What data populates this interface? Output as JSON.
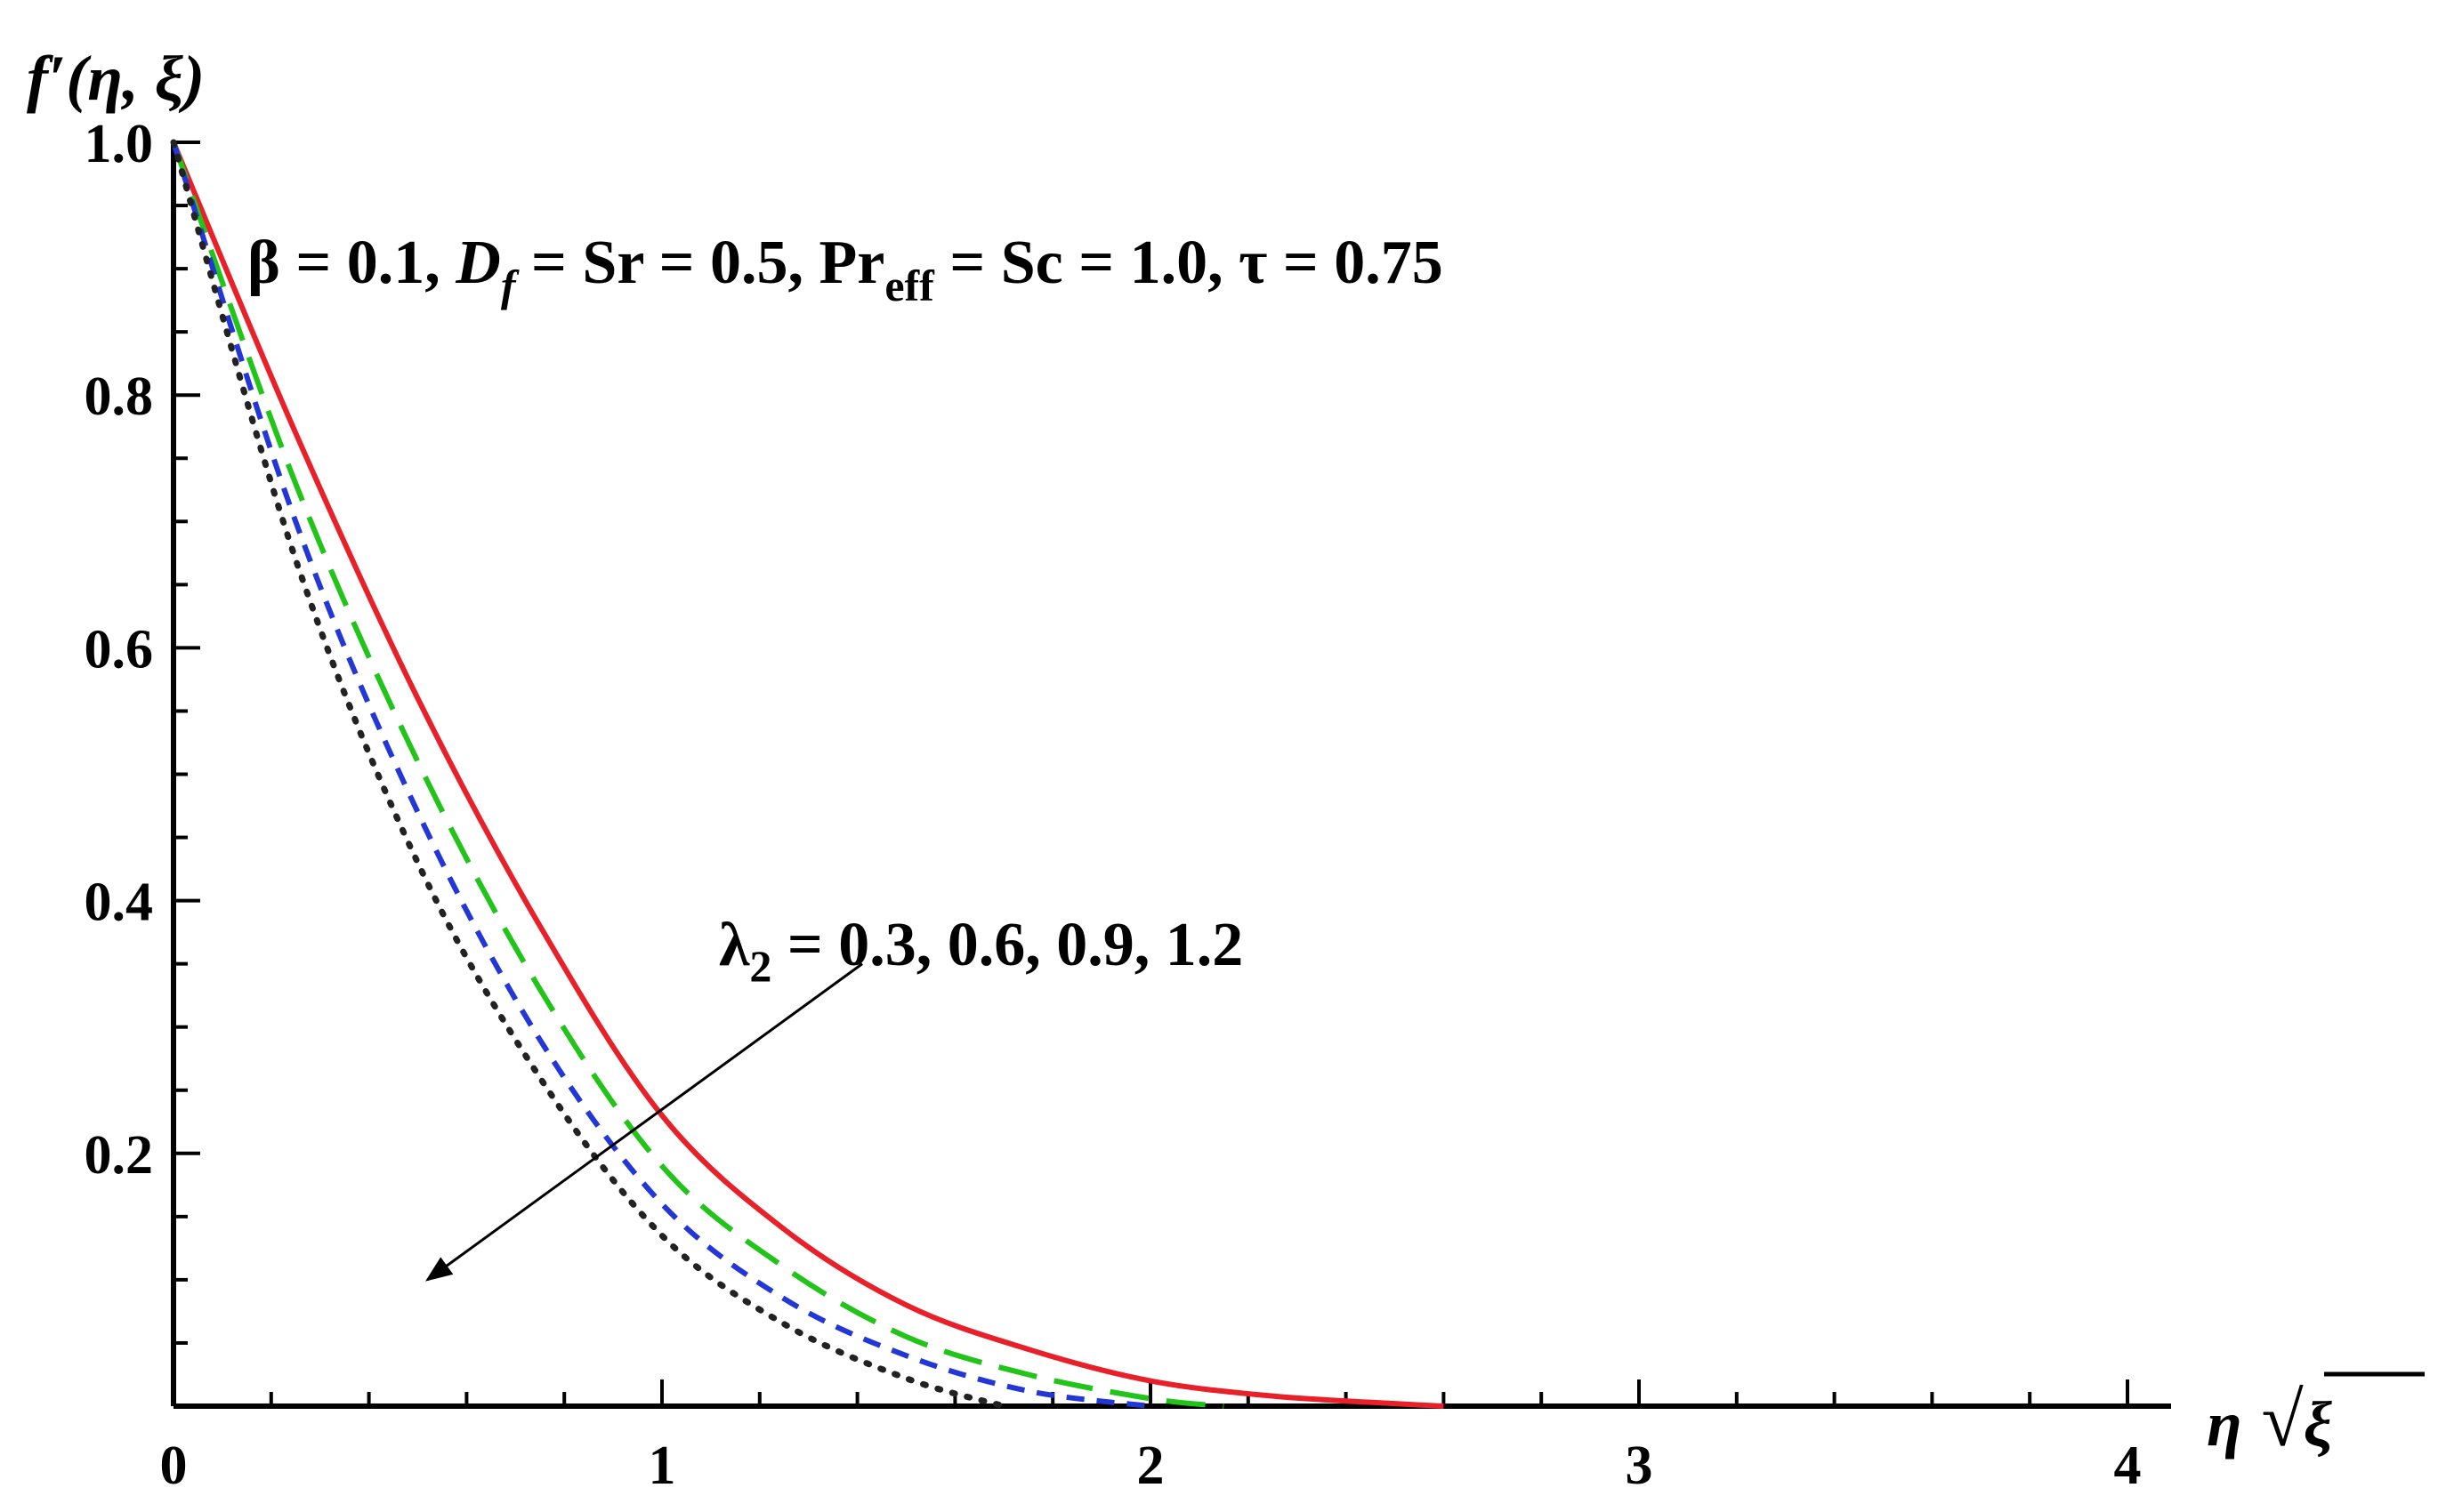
{
  "chart_data": {
    "type": "line",
    "title": "",
    "ylabel_parts": {
      "f": "f",
      "prime": "′",
      "args": "(η, ξ)"
    },
    "xlabel_parts": {
      "eta": "η",
      "radical": "√",
      "xi": "ξ"
    },
    "xlim": [
      0,
      4
    ],
    "ylim": [
      0,
      1
    ],
    "x_ticks": [
      0,
      1,
      2,
      3,
      4
    ],
    "x_tick_labels": [
      "0",
      "1",
      "2",
      "3",
      "4"
    ],
    "y_ticks": [
      0.2,
      0.4,
      0.6,
      0.8,
      1.0
    ],
    "y_tick_labels": [
      "0.2",
      "0.4",
      "0.6",
      "0.8",
      "1.0"
    ],
    "grid": false,
    "legend": "none",
    "annotations": {
      "params": {
        "beta": "β = 0.1, ",
        "D": "D",
        "f_sub": "f",
        "sr": " = Sr = 0.5, Pr",
        "eff_sub": "eff",
        "sc_tau": " = Sc = 1.0, τ = 0.75"
      },
      "lambda": {
        "l": "λ",
        "sub": "2",
        "values": " = 0.3, 0.6, 0.9, 1.2"
      },
      "arrow": {
        "from": [
          1.41,
          0.35
        ],
        "to": [
          0.52,
          0.1
        ],
        "direction": "increasing λ2"
      }
    },
    "series": [
      {
        "lambda2": 0.3,
        "color": "#e8202a",
        "style": "solid",
        "x": [
          0,
          0.25,
          0.5,
          0.75,
          1.0,
          1.25,
          1.5,
          1.75,
          2.0,
          2.25,
          2.5,
          2.6
        ],
        "y": [
          1.0,
          0.77,
          0.56,
          0.38,
          0.23,
          0.14,
          0.08,
          0.045,
          0.02,
          0.008,
          0.002,
          0.0
        ]
      },
      {
        "lambda2": 0.6,
        "color": "#22c41a",
        "style": "dashed",
        "x": [
          0,
          0.25,
          0.5,
          0.75,
          1.0,
          1.25,
          1.5,
          1.75,
          2.0,
          2.15
        ],
        "y": [
          1.0,
          0.73,
          0.51,
          0.33,
          0.19,
          0.11,
          0.055,
          0.025,
          0.006,
          0.0
        ]
      },
      {
        "lambda2": 0.9,
        "color": "#2336d6",
        "style": "short-dashed",
        "x": [
          0,
          0.25,
          0.5,
          0.75,
          1.0,
          1.25,
          1.5,
          1.75,
          2.0
        ],
        "y": [
          1.0,
          0.7,
          0.47,
          0.29,
          0.16,
          0.085,
          0.04,
          0.012,
          0.0
        ]
      },
      {
        "lambda2": 1.2,
        "color": "#222222",
        "style": "dotted",
        "x": [
          0,
          0.25,
          0.5,
          0.75,
          1.0,
          1.25,
          1.5,
          1.7
        ],
        "y": [
          1.0,
          0.67,
          0.43,
          0.26,
          0.135,
          0.065,
          0.022,
          0.0
        ]
      }
    ]
  }
}
